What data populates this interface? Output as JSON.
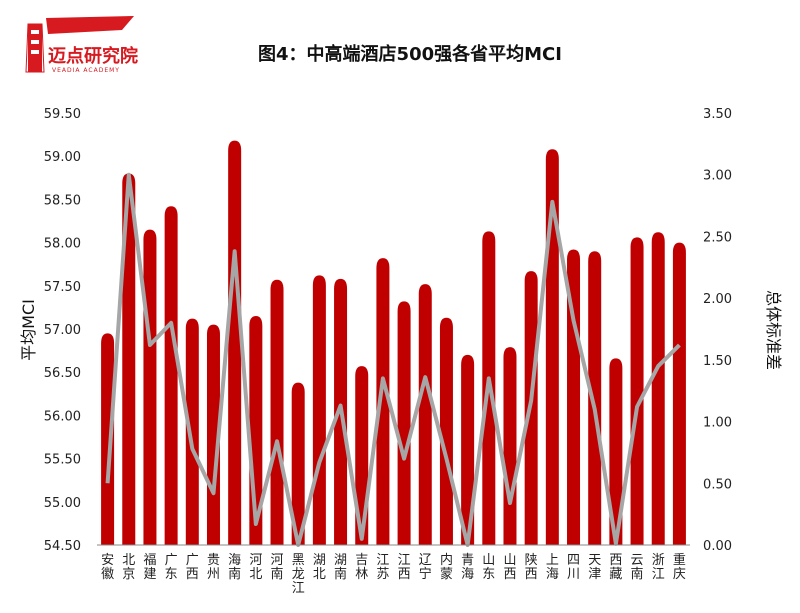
{
  "logo": {
    "text": "迈点研究院",
    "subtext": "VEADIA ACADEMY"
  },
  "chart_data": {
    "type": "bar+line",
    "title": "图4：中高端酒店500强各省平均MCI",
    "categories": [
      "安徽",
      "北京",
      "福建",
      "广东",
      "广西",
      "贵州",
      "海南",
      "河北",
      "河南",
      "黑龙江",
      "湖北",
      "湖南",
      "吉林",
      "江苏",
      "江西",
      "辽宁",
      "内蒙",
      "青海",
      "山东",
      "山西",
      "陕西",
      "上海",
      "四川",
      "天津",
      "西藏",
      "云南",
      "浙江",
      "重庆"
    ],
    "series": [
      {
        "name": "平均MCI",
        "type": "bar",
        "axis": "left",
        "color": "#c00000",
        "values": [
          56.95,
          58.8,
          58.15,
          58.42,
          57.12,
          57.05,
          59.18,
          57.15,
          57.57,
          56.38,
          57.62,
          57.58,
          56.57,
          57.82,
          57.32,
          57.52,
          57.13,
          56.7,
          58.13,
          56.79,
          57.67,
          59.08,
          57.92,
          57.9,
          56.66,
          58.06,
          58.12,
          58.0
        ]
      },
      {
        "name": "总体标准差",
        "type": "line",
        "axis": "right",
        "color": "#a6a6a6",
        "values": [
          0.5,
          3.0,
          1.62,
          1.8,
          0.78,
          0.42,
          2.38,
          0.17,
          0.84,
          0.0,
          0.67,
          1.13,
          0.05,
          1.35,
          0.7,
          1.36,
          0.7,
          0.0,
          1.35,
          0.34,
          1.17,
          2.78,
          1.82,
          1.1,
          0.01,
          1.12,
          1.45,
          1.62
        ]
      }
    ],
    "y_left": {
      "label": "平均MCI",
      "min": 54.5,
      "max": 59.5,
      "ticks": [
        "54.50",
        "55.00",
        "55.50",
        "56.00",
        "56.50",
        "57.00",
        "57.50",
        "58.00",
        "58.50",
        "59.00",
        "59.50"
      ]
    },
    "y_right": {
      "label": "总体标准差",
      "min": 0,
      "max": 3.5,
      "ticks": [
        "0.00",
        "0.50",
        "1.00",
        "1.50",
        "2.00",
        "2.50",
        "3.00",
        "3.50"
      ]
    },
    "grid": false,
    "legend": "none"
  }
}
